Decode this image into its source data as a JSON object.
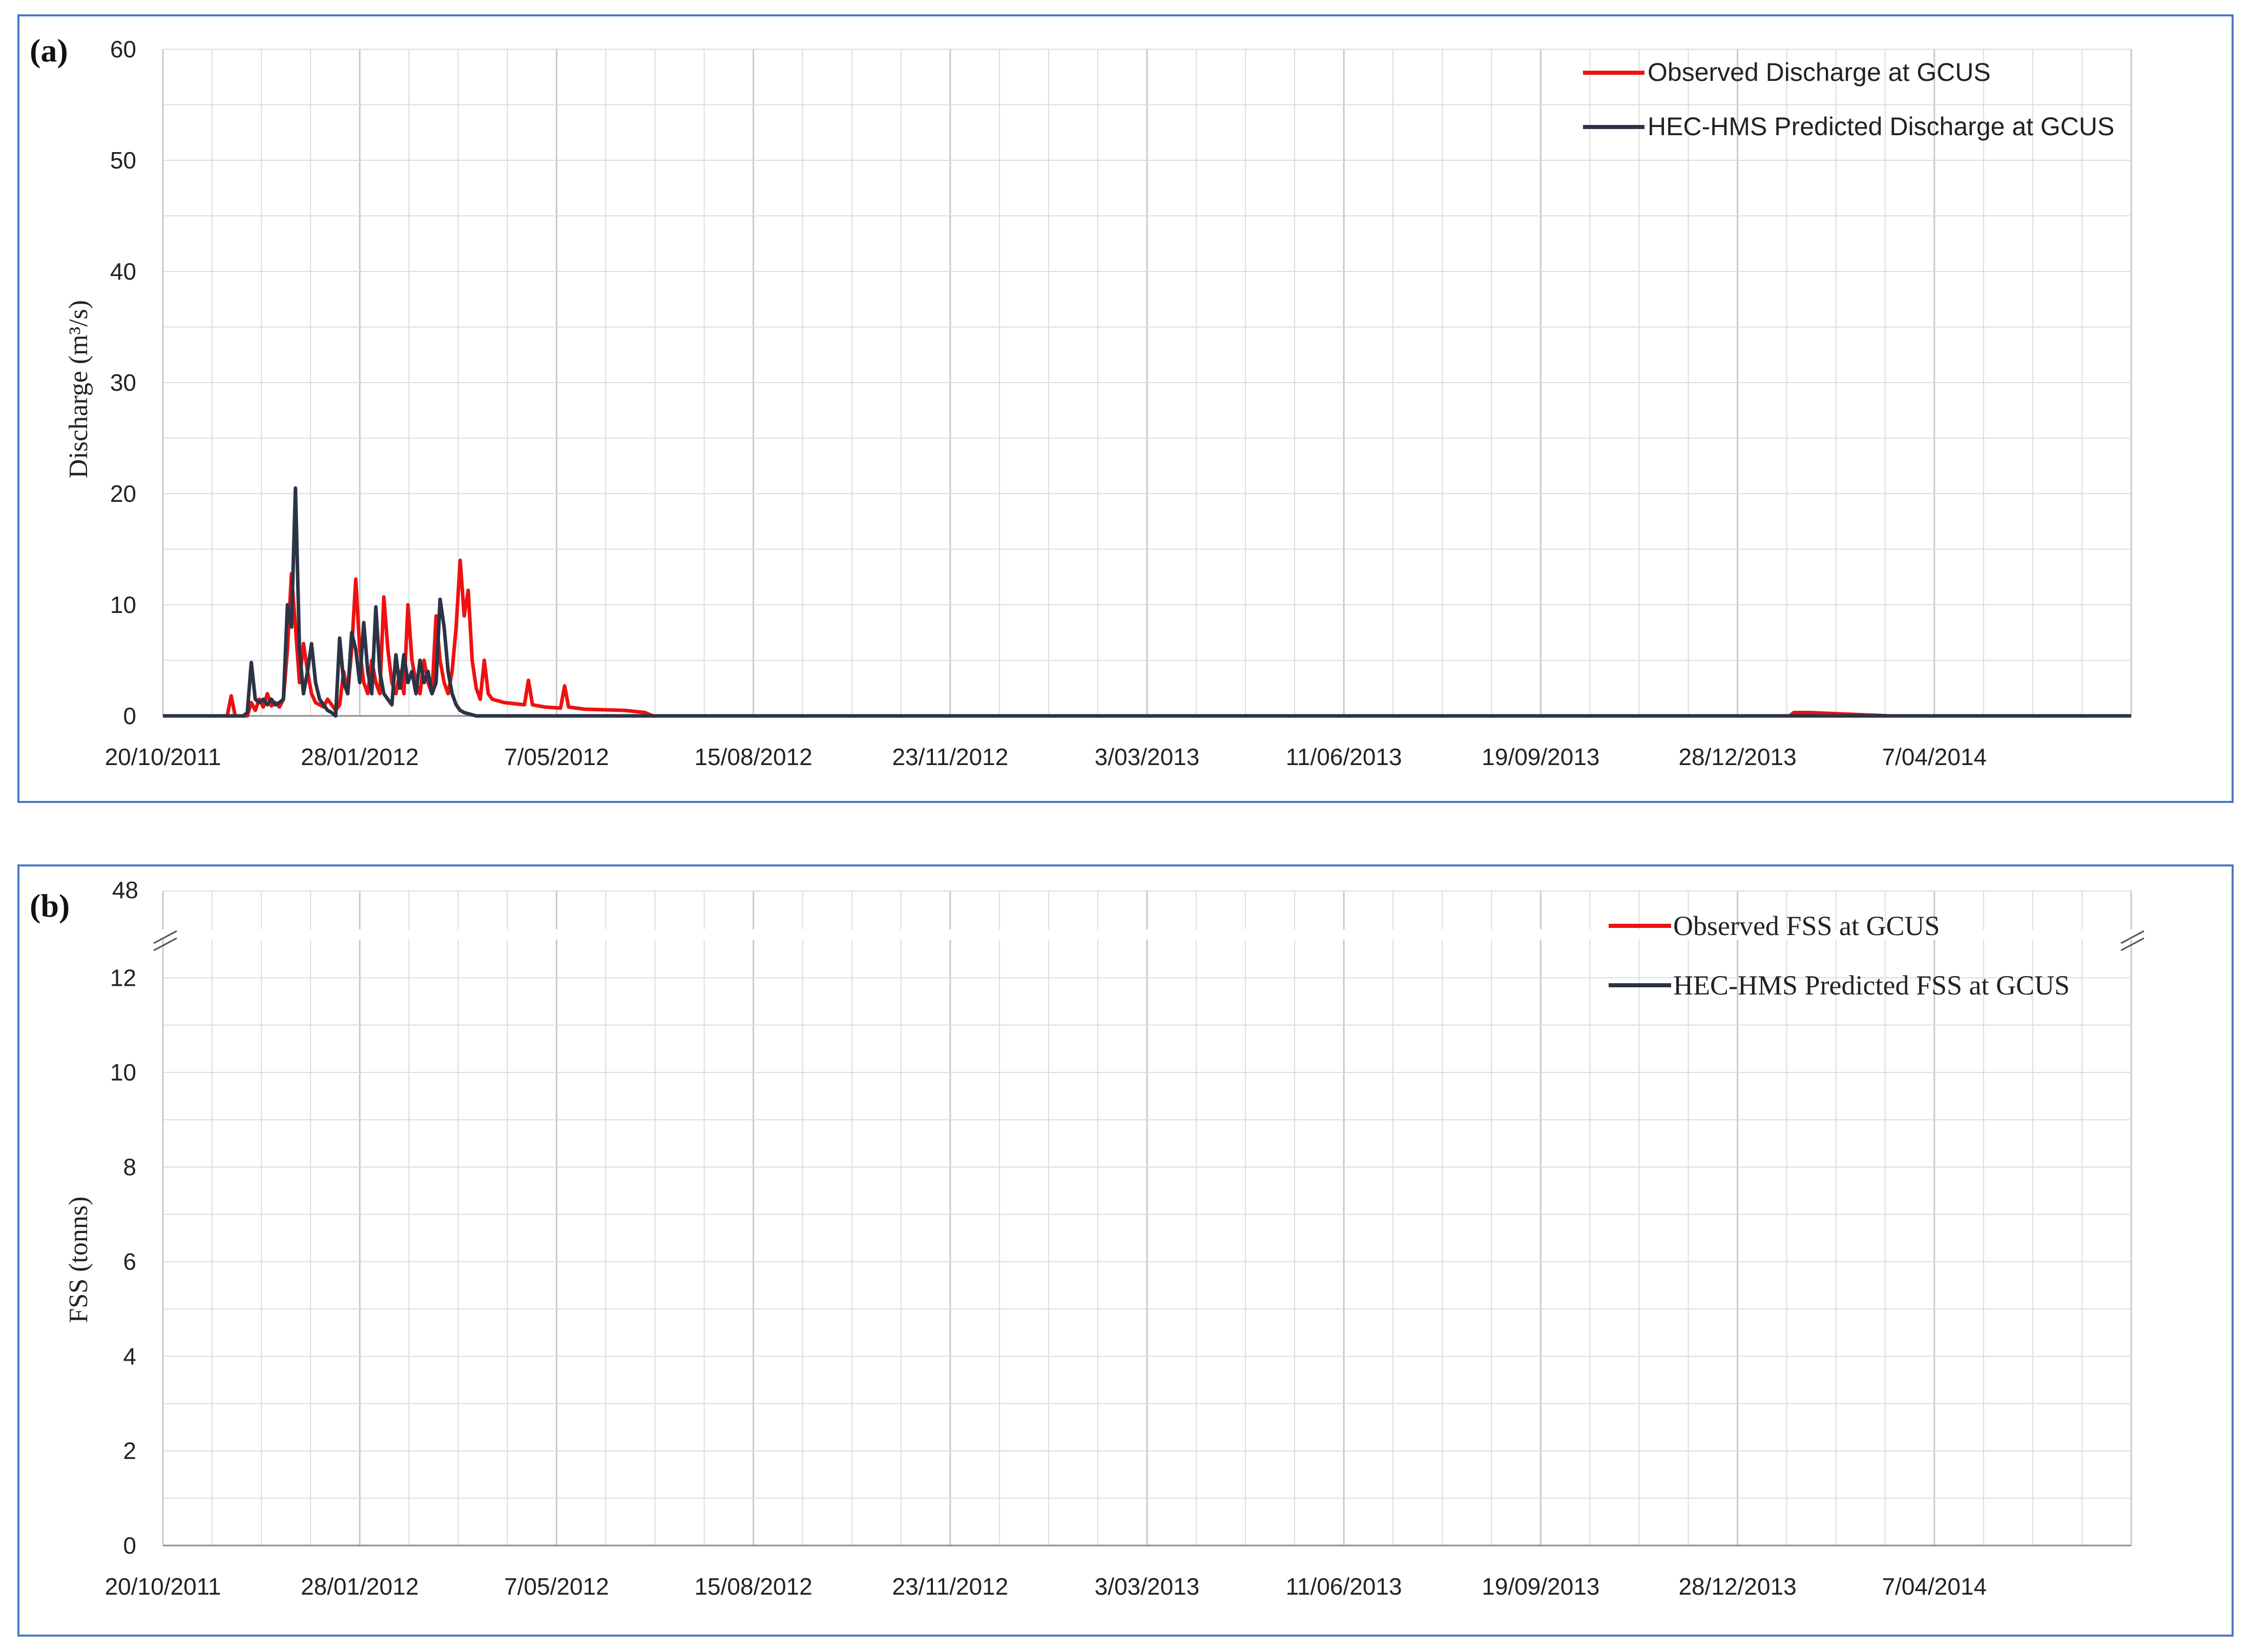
{
  "colors": {
    "observed": "#ee1111",
    "predicted": "#2b3445",
    "frame": "#4a78c2",
    "grid": "#dcdcdc"
  },
  "chart_data": [
    {
      "panel": "(a)",
      "type": "line",
      "ylabel": "Discharge (m³/s)",
      "ylim": [
        0,
        60
      ],
      "yticks": [
        "0",
        "10",
        "20",
        "30",
        "40",
        "50",
        "60"
      ],
      "xticks": [
        "20/10/2011",
        "28/01/2012",
        "7/05/2012",
        "15/08/2012",
        "23/11/2012",
        "3/03/2013",
        "11/06/2013",
        "19/09/2013",
        "28/12/2013",
        "7/04/2014"
      ],
      "xlim_days": [
        0,
        980
      ],
      "grid": true,
      "legend_position": "top-right",
      "series": [
        {
          "name": "Observed Discharge at GCUS",
          "color_key": "observed",
          "points": [
            [
              0,
              0
            ],
            [
              32,
              0
            ],
            [
              34,
              1.8
            ],
            [
              36,
              0
            ],
            [
              42,
              0
            ],
            [
              44,
              1.2
            ],
            [
              46,
              0.5
            ],
            [
              48,
              1.5
            ],
            [
              50,
              0.8
            ],
            [
              52,
              2
            ],
            [
              54,
              0.9
            ],
            [
              56,
              1.2
            ],
            [
              58,
              0.8
            ],
            [
              60,
              1.5
            ],
            [
              62,
              6
            ],
            [
              64,
              12.8
            ],
            [
              66,
              8
            ],
            [
              68,
              3
            ],
            [
              70,
              6.5
            ],
            [
              72,
              4
            ],
            [
              74,
              2
            ],
            [
              76,
              1.2
            ],
            [
              78,
              1
            ],
            [
              80,
              0.8
            ],
            [
              82,
              1.5
            ],
            [
              84,
              1
            ],
            [
              86,
              0.5
            ],
            [
              88,
              1
            ],
            [
              90,
              4
            ],
            [
              92,
              2
            ],
            [
              94,
              6
            ],
            [
              96,
              12.3
            ],
            [
              98,
              6
            ],
            [
              100,
              3
            ],
            [
              102,
              2
            ],
            [
              104,
              5
            ],
            [
              106,
              3
            ],
            [
              108,
              2
            ],
            [
              110,
              10.7
            ],
            [
              112,
              6
            ],
            [
              114,
              3
            ],
            [
              116,
              2
            ],
            [
              118,
              4
            ],
            [
              120,
              2
            ],
            [
              122,
              10
            ],
            [
              124,
              5
            ],
            [
              126,
              3
            ],
            [
              128,
              2
            ],
            [
              130,
              5
            ],
            [
              132,
              3
            ],
            [
              134,
              2
            ],
            [
              136,
              9
            ],
            [
              138,
              5
            ],
            [
              140,
              3
            ],
            [
              142,
              2
            ],
            [
              144,
              4
            ],
            [
              146,
              8
            ],
            [
              148,
              14
            ],
            [
              150,
              9
            ],
            [
              152,
              11.3
            ],
            [
              154,
              5
            ],
            [
              156,
              2.5
            ],
            [
              158,
              1.5
            ],
            [
              160,
              5
            ],
            [
              162,
              2
            ],
            [
              164,
              1.5
            ],
            [
              170,
              1.2
            ],
            [
              180,
              1
            ],
            [
              182,
              3.2
            ],
            [
              184,
              1
            ],
            [
              190,
              0.8
            ],
            [
              198,
              0.7
            ],
            [
              200,
              2.7
            ],
            [
              202,
              0.8
            ],
            [
              210,
              0.6
            ],
            [
              230,
              0.5
            ],
            [
              240,
              0.3
            ],
            [
              244,
              0
            ],
            [
              810,
              0
            ],
            [
              812,
              0.3
            ],
            [
              820,
              0.3
            ],
            [
              860,
              0
            ],
            [
              2000,
              0
            ]
          ]
        },
        {
          "name": "HEC-HMS Predicted Discharge at GCUS",
          "color_key": "predicted",
          "points": [
            [
              0,
              0
            ],
            [
              40,
              0
            ],
            [
              42,
              0.3
            ],
            [
              44,
              4.8
            ],
            [
              46,
              1.5
            ],
            [
              48,
              1.2
            ],
            [
              50,
              1.5
            ],
            [
              52,
              1
            ],
            [
              54,
              1.5
            ],
            [
              56,
              1
            ],
            [
              58,
              1.2
            ],
            [
              60,
              1.5
            ],
            [
              62,
              10
            ],
            [
              64,
              8
            ],
            [
              66,
              20.5
            ],
            [
              68,
              6
            ],
            [
              70,
              2
            ],
            [
              72,
              4
            ],
            [
              74,
              6.5
            ],
            [
              76,
              3
            ],
            [
              78,
              1.5
            ],
            [
              80,
              1
            ],
            [
              82,
              0.5
            ],
            [
              84,
              0.3
            ],
            [
              86,
              0
            ],
            [
              88,
              7
            ],
            [
              90,
              3
            ],
            [
              92,
              2
            ],
            [
              94,
              7.5
            ],
            [
              96,
              6
            ],
            [
              98,
              3
            ],
            [
              100,
              8.4
            ],
            [
              102,
              4
            ],
            [
              104,
              2
            ],
            [
              106,
              9.8
            ],
            [
              108,
              4
            ],
            [
              110,
              2
            ],
            [
              112,
              1.5
            ],
            [
              114,
              1
            ],
            [
              116,
              5.5
            ],
            [
              118,
              2.5
            ],
            [
              120,
              5.5
            ],
            [
              122,
              3
            ],
            [
              124,
              4
            ],
            [
              126,
              2
            ],
            [
              128,
              5
            ],
            [
              130,
              3
            ],
            [
              132,
              4
            ],
            [
              134,
              2
            ],
            [
              136,
              3
            ],
            [
              138,
              10.5
            ],
            [
              140,
              8
            ],
            [
              142,
              4
            ],
            [
              144,
              2
            ],
            [
              146,
              1
            ],
            [
              148,
              0.5
            ],
            [
              150,
              0.3
            ],
            [
              156,
              0
            ],
            [
              2000,
              0
            ]
          ]
        }
      ]
    },
    {
      "panel": "(b)",
      "type": "line",
      "ylabel": "FSS (tonns)",
      "ylim": [
        0,
        12.6
      ],
      "yticks": [
        "0",
        "2",
        "4",
        "6",
        "8",
        "10",
        "12"
      ],
      "ybreak_label": "48",
      "xticks": [
        "20/10/2011",
        "28/01/2012",
        "7/05/2012",
        "15/08/2012",
        "23/11/2012",
        "3/03/2013",
        "11/06/2013",
        "19/09/2013",
        "28/12/2013",
        "7/04/2014"
      ],
      "xlim_days": [
        0,
        980
      ],
      "grid": true,
      "legend_position": "top-right",
      "series": [
        {
          "name": "Observed FSS at GCUS",
          "color_key": "observed"
        },
        {
          "name": "HEC-HMS Predicted FSS at GCUS",
          "color_key": "predicted"
        }
      ]
    }
  ]
}
